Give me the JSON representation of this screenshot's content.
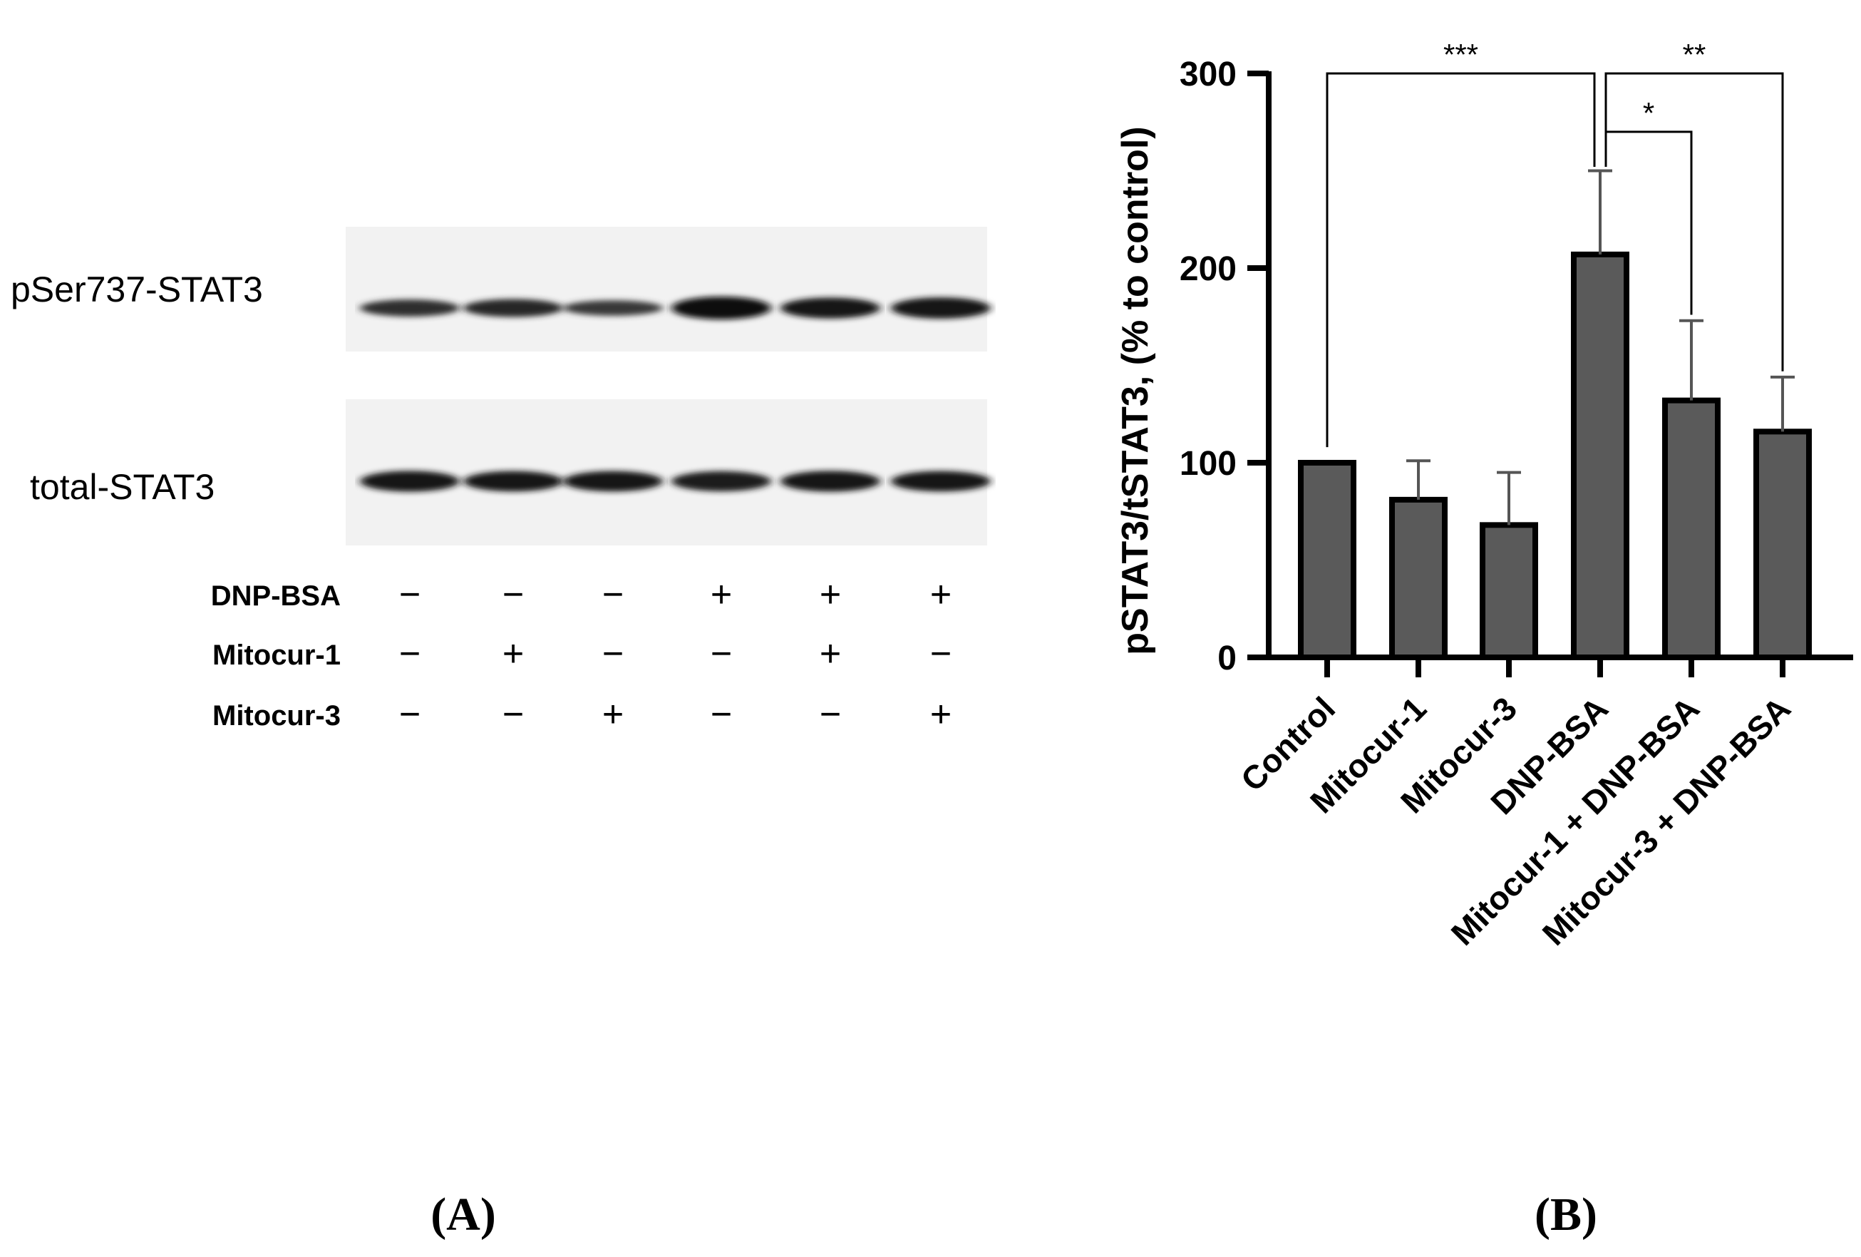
{
  "panel_a": {
    "label": "(A)",
    "blots": [
      {
        "label": "pSer737-STAT3",
        "intensity": [
          0.55,
          0.62,
          0.42,
          1.0,
          0.85,
          0.88
        ]
      },
      {
        "label": "total-STAT3",
        "intensity": [
          0.85,
          0.82,
          0.82,
          0.8,
          0.85,
          0.82
        ]
      }
    ],
    "conditions": [
      {
        "label": "DNP-BSA",
        "signs": [
          "−",
          "−",
          "−",
          "+",
          "+",
          "+"
        ]
      },
      {
        "label": "Mitocur-1",
        "signs": [
          "−",
          "+",
          "−",
          "−",
          "+",
          "−"
        ]
      },
      {
        "label": "Mitocur-3",
        "signs": [
          "−",
          "−",
          "+",
          "−",
          "−",
          "+"
        ]
      }
    ]
  },
  "chart_data": {
    "type": "bar",
    "title": "",
    "panel_label": "(B)",
    "xlabel": "",
    "ylabel": "pSTAT3/tSTAT3, (% to control)",
    "categories": [
      "Control",
      "Mitocur-1",
      "Mitocur-3",
      "DNP-BSA",
      "Mitocur-1 + DNP-BSA",
      "Mitocur-3 + DNP-BSA"
    ],
    "values": [
      100,
      81,
      68,
      207,
      132,
      116
    ],
    "errors": [
      0,
      20,
      27,
      43,
      41,
      28
    ],
    "ylim": [
      0,
      300
    ],
    "yticks": [
      0,
      100,
      200,
      300
    ],
    "grid": false,
    "bar_color": "#5a5a5a",
    "significance": [
      {
        "from": 0,
        "to": 3,
        "label": "***",
        "level": 300
      },
      {
        "from": 3,
        "to": 5,
        "label": "**",
        "level": 300
      },
      {
        "from": 3,
        "to": 4,
        "label": "*",
        "level": 270
      }
    ]
  }
}
